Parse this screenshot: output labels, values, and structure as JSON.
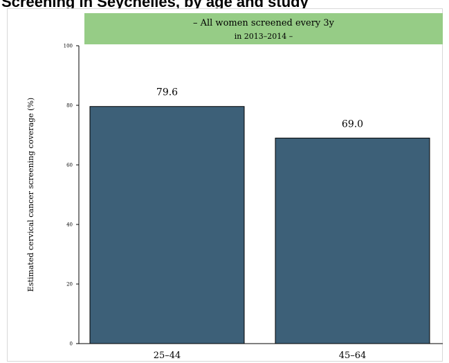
{
  "title": "Screening in Seychelles, by age and study",
  "chart_data": {
    "type": "bar",
    "categories": [
      "25–44",
      "45–64"
    ],
    "values": [
      79.6,
      69.0
    ],
    "value_labels": [
      "79.6",
      "69.0"
    ],
    "banner": {
      "line1": "– All women screened every 3y",
      "line2": "in 2013–2014 –"
    },
    "xlabel": "",
    "ylabel": "Estimated cervical cancer screening coverage (%)",
    "ylim": [
      0,
      100
    ],
    "yticks": [
      "0",
      "20",
      "40",
      "60",
      "80",
      "100"
    ],
    "grid": false,
    "legend": "none"
  },
  "colors": {
    "bar": "#3d6078",
    "bar_stroke": "#000000",
    "banner": "#96cc86",
    "axis": "#000000",
    "frame": "#d8d8d8"
  }
}
